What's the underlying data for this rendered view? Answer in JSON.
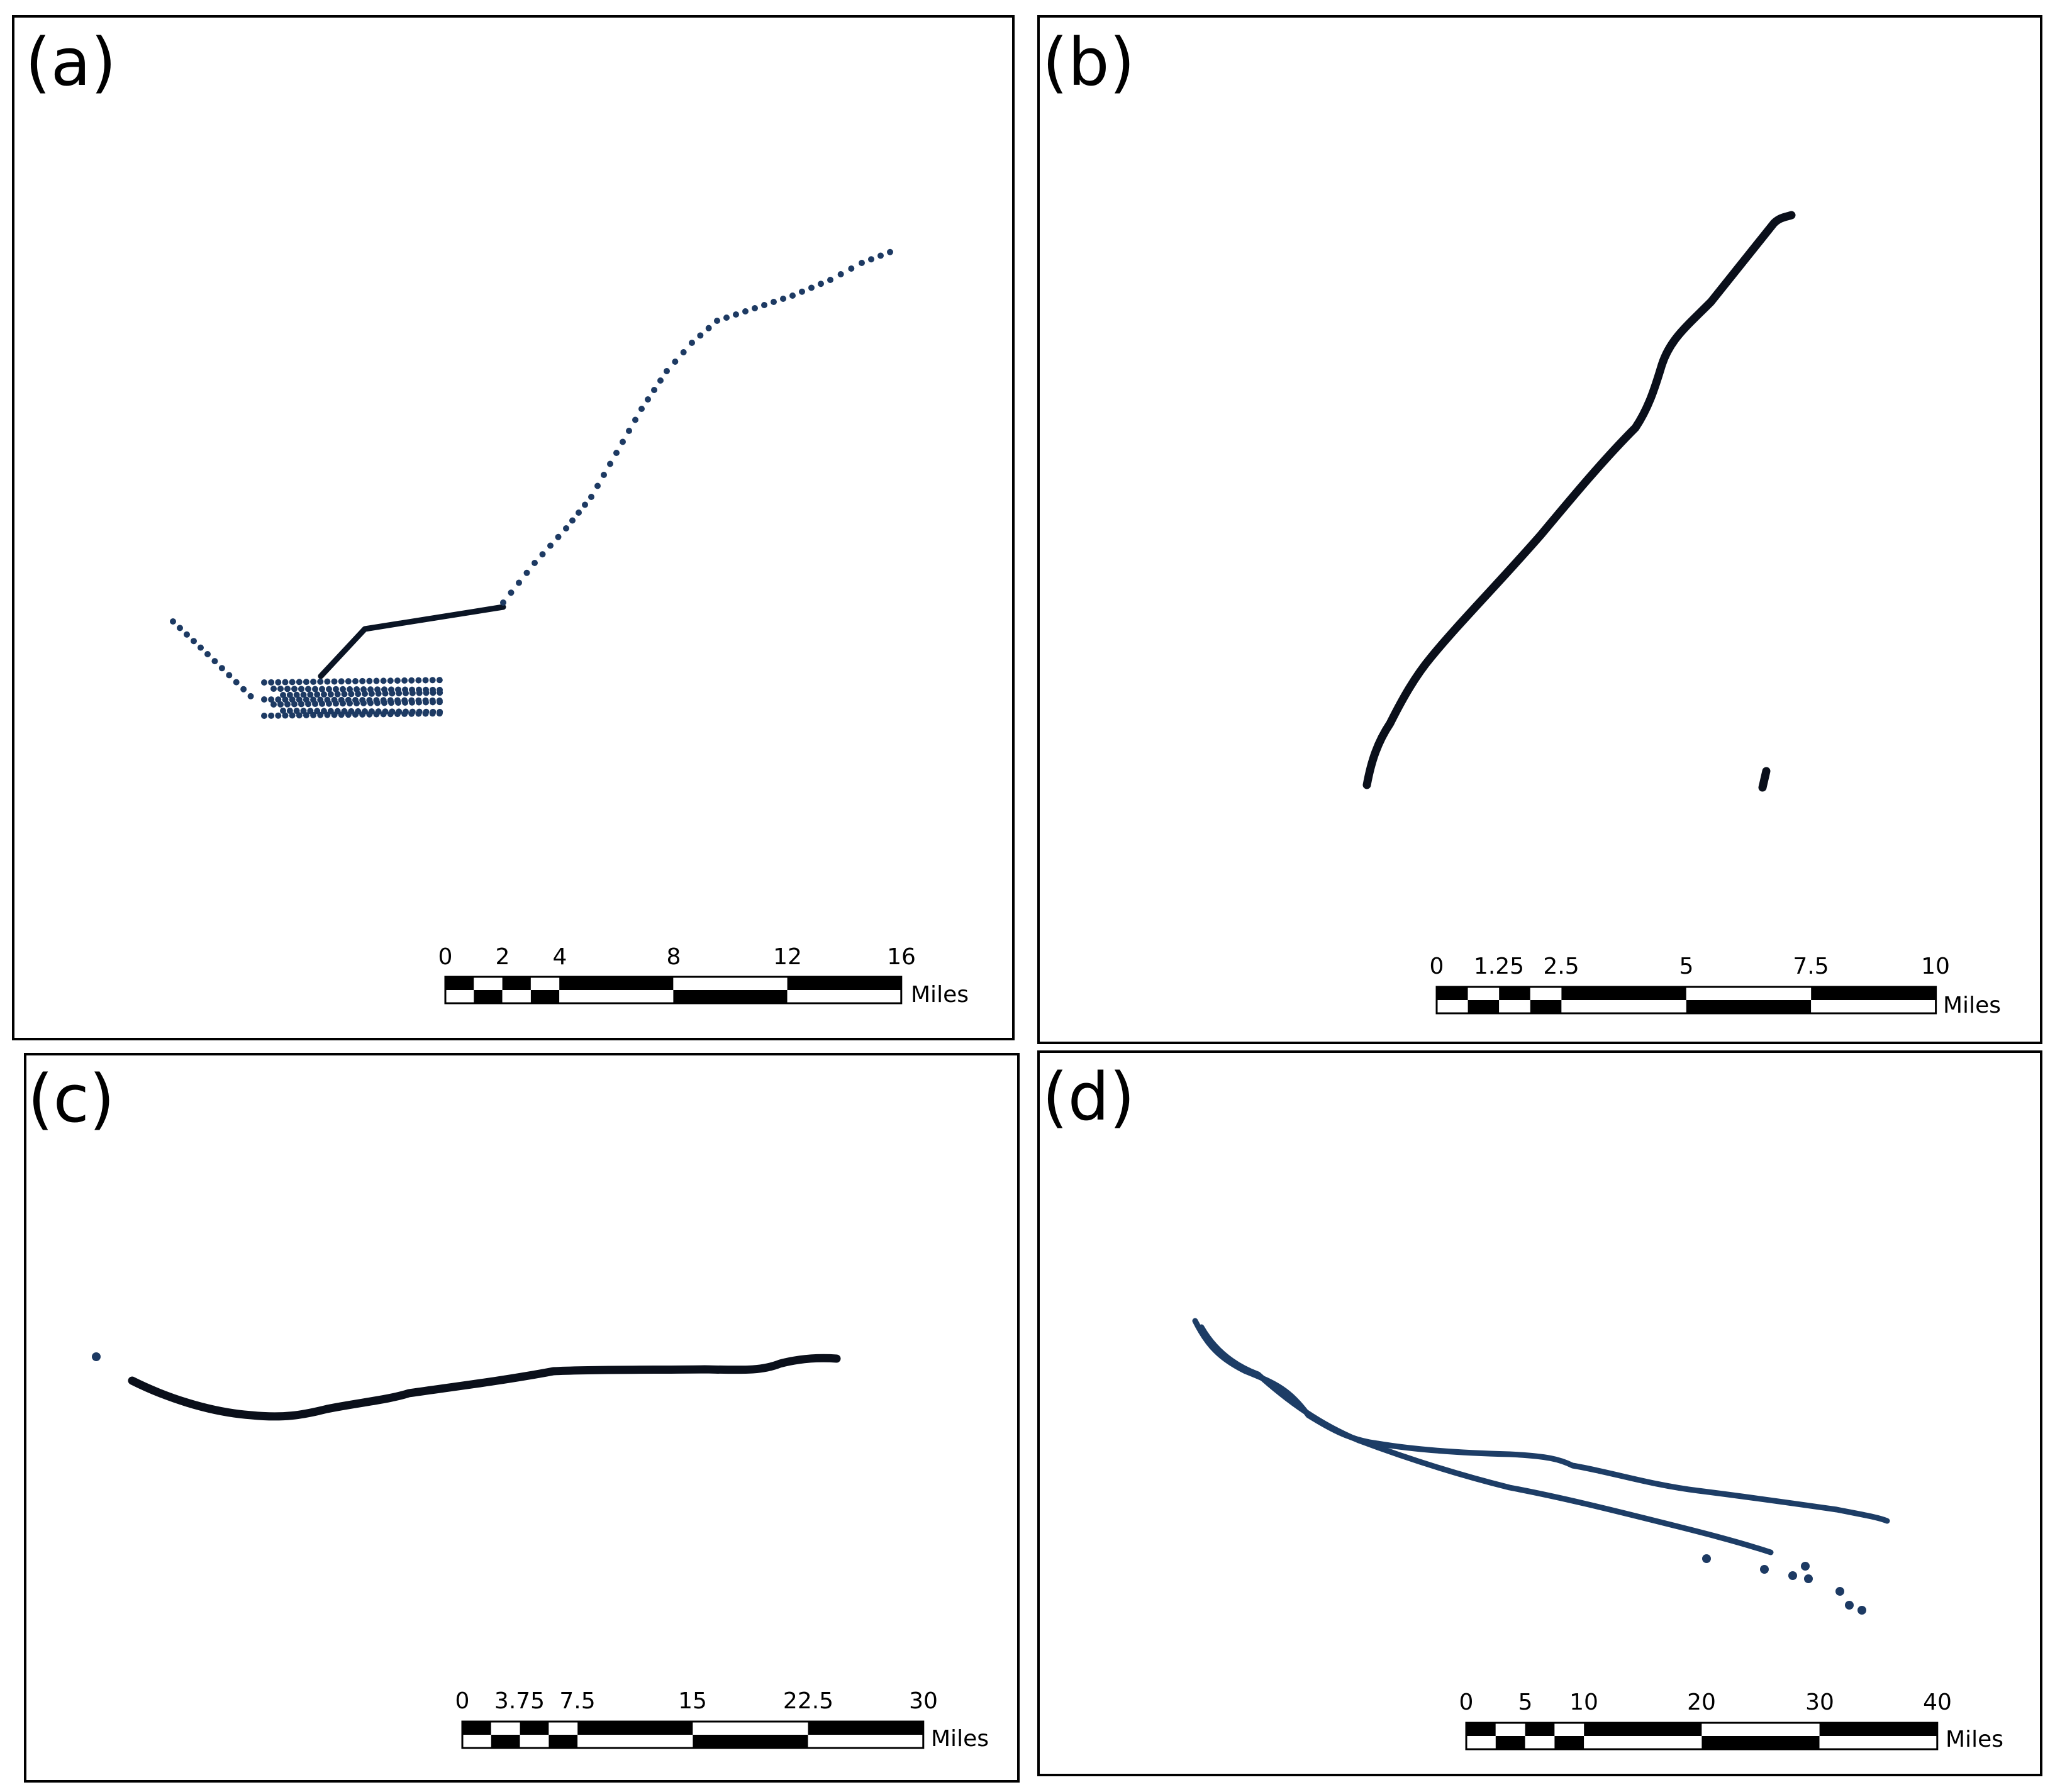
{
  "panels": [
    {
      "id": "a",
      "label": "(a)",
      "scale_bar": {
        "ticks": [
          "0",
          "2",
          "4",
          "8",
          "12",
          "16"
        ],
        "unit": "Miles"
      }
    },
    {
      "id": "b",
      "label": "(b)",
      "scale_bar": {
        "ticks": [
          "0",
          "1.25",
          "2.5",
          "5",
          "7.5",
          "10"
        ],
        "unit": "Miles"
      }
    },
    {
      "id": "c",
      "label": "(c)",
      "scale_bar": {
        "ticks": [
          "0",
          "3.75",
          "7.5",
          "15",
          "22.5",
          "30"
        ],
        "unit": "Miles"
      }
    },
    {
      "id": "d",
      "label": "(d)",
      "scale_bar": {
        "ticks": [
          "0",
          "5",
          "10",
          "20",
          "30",
          "40"
        ],
        "unit": "Miles"
      }
    }
  ],
  "colors": {
    "track_point": "#1d3a63",
    "track_line": "#0a1424",
    "frame": "#000000"
  }
}
